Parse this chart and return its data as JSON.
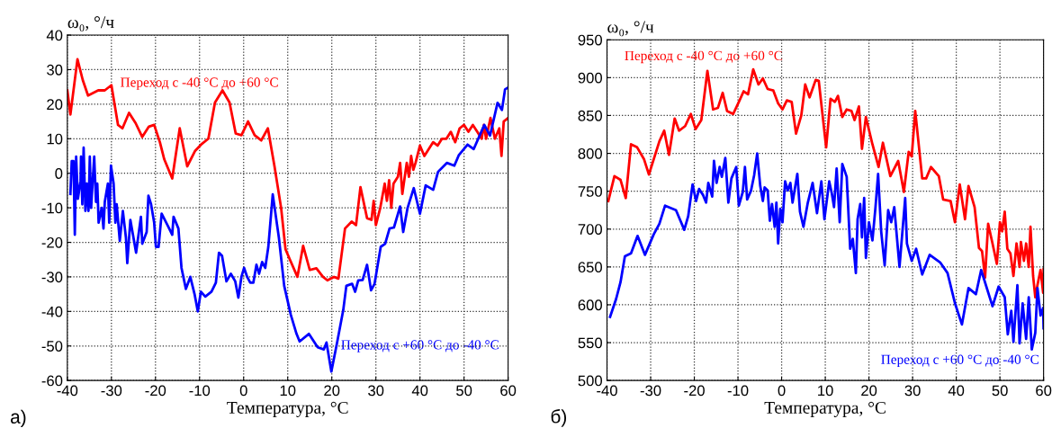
{
  "chart_data": [
    {
      "type": "line",
      "xlabel": "Температура, °C",
      "ylabel": "ω₀, °/ч",
      "annotations": [
        "а)"
      ],
      "xlim": [
        -40,
        60
      ],
      "ylim": [
        -60,
        40
      ],
      "xticks": [
        -40,
        -30,
        -20,
        -10,
        0,
        10,
        20,
        30,
        40,
        50,
        60
      ],
      "yticks": [
        -60,
        -50,
        -40,
        -30,
        -20,
        -10,
        0,
        10,
        20,
        30,
        40
      ],
      "grid": true,
      "line_style": "solid",
      "series": [
        {
          "name": "Переход с -40 °C до +60 °C",
          "color": "#ff0000",
          "x": [
            -40,
            -39.3,
            -37.7,
            -36.5,
            -35.3,
            -33,
            -31.5,
            -30,
            -28.5,
            -27.5,
            -26,
            -24.5,
            -23,
            -21.5,
            -20.3,
            -19,
            -18,
            -16.2,
            -14.5,
            -12.8,
            -11,
            -9.5,
            -8,
            -6.5,
            -4.8,
            -3.2,
            -1.8,
            -0.5,
            1,
            2.5,
            4,
            5.5,
            7,
            8.5,
            9.5,
            10.5,
            12.2,
            13.5,
            15,
            16.5,
            18,
            19,
            20.5,
            21.5,
            23,
            24.5,
            25.5,
            26.5,
            28,
            29,
            29.5,
            30,
            31,
            32,
            32.5,
            33,
            33.5,
            34,
            35,
            35.5,
            36,
            37,
            37.5,
            38,
            38.5,
            39,
            40,
            41,
            42,
            43,
            44,
            45,
            46,
            47,
            48,
            49,
            50,
            51,
            52,
            53,
            54,
            54.5,
            55,
            56,
            57,
            58,
            58.5,
            59,
            60
          ],
          "values": [
            24,
            17,
            33,
            27,
            22.5,
            24,
            24,
            25.5,
            14,
            13,
            17.5,
            14.5,
            10.5,
            13.5,
            14,
            9,
            4,
            -1.5,
            13,
            2,
            6.5,
            8.5,
            10,
            20.5,
            24,
            20.5,
            11.5,
            11,
            15,
            11,
            9.5,
            13,
            2,
            -10,
            -22,
            -25,
            -30,
            -21,
            -28,
            -27.5,
            -30,
            -31,
            -30,
            -30.5,
            -16,
            -14,
            -15,
            -4,
            -13,
            -13.5,
            -8,
            -15,
            -10,
            -3,
            -8,
            -2,
            -10,
            -3,
            -1,
            3,
            -6,
            3,
            -1,
            5,
            1,
            3,
            8,
            5,
            7,
            9,
            8,
            10,
            10,
            12,
            9,
            13,
            14,
            12,
            14,
            12,
            10,
            14,
            10,
            16,
            10,
            13,
            5,
            15,
            16
          ]
        },
        {
          "name": "Переход с +60 °C до -40 °C",
          "color": "#0000ff",
          "x": [
            -39.3,
            -39,
            -38.6,
            -38.3,
            -38,
            -37.6,
            -37,
            -36.9,
            -36.6,
            -36.3,
            -35.9,
            -35.6,
            -35.2,
            -34.9,
            -34.6,
            -34.2,
            -33.9,
            -33.5,
            -33.2,
            -32.9,
            -32.2,
            -31.8,
            -31.5,
            -30.8,
            -30.5,
            -30.1,
            -29.5,
            -29.1,
            -28.8,
            -28.1,
            -27.4,
            -26.7,
            -26.4,
            -25.7,
            -24.4,
            -23.3,
            -23,
            -22,
            -21.6,
            -21,
            -20.3,
            -19.9,
            -19.3,
            -18.6,
            -17.2,
            -16.2,
            -15.9,
            -14.8,
            -14.1,
            -13.1,
            -12.1,
            -11.1,
            -10.4,
            -9.7,
            -8.7,
            -7.3,
            -6.3,
            -5.6,
            -4.9,
            -3.9,
            -2.9,
            -1.9,
            -1.2,
            -0.5,
            0.1,
            0.8,
            1.5,
            2.2,
            2.9,
            3.5,
            4.2,
            4.9,
            5.6,
            6.6,
            8,
            9.2,
            10.7,
            12,
            12.7,
            14.8,
            16.8,
            18.2,
            18.8,
            19.9,
            21.2,
            22.6,
            23.3,
            24.6,
            25.3,
            26,
            27,
            28,
            28.9,
            29.7,
            31.1,
            32.1,
            33.1,
            34.1,
            35.5,
            36.2,
            37.2,
            38.6,
            40,
            41.3,
            43,
            44.1,
            46.1,
            47.8,
            48.8,
            50.8,
            52.2,
            54.6,
            55.9,
            57.6,
            58.6,
            59.3,
            60
          ],
          "values": [
            -6,
            3.5,
            3.5,
            -17.8,
            4.8,
            -7.4,
            -2.2,
            4.8,
            -9,
            7.4,
            -10.9,
            -3,
            -10.9,
            4.8,
            -10,
            -1.3,
            4.8,
            -8.3,
            -3,
            -14.3,
            -10,
            -16,
            -8.3,
            -3,
            -14.3,
            2.2,
            -3,
            -14.3,
            -9,
            -19.6,
            -10.9,
            -18.7,
            -26,
            -13.5,
            -23,
            -12.6,
            -20.4,
            -17,
            -6.5,
            -9,
            -14.3,
            -21.3,
            -21.3,
            -11.7,
            -15.2,
            -17.8,
            -12.6,
            -16,
            -27.4,
            -33.5,
            -30,
            -35.2,
            -40,
            -34.3,
            -35.7,
            -34.3,
            -31.7,
            -23,
            -23.9,
            -31.3,
            -29.1,
            -31.3,
            -36,
            -30,
            -27.4,
            -30,
            -31.7,
            -31.7,
            -26.5,
            -29.1,
            -25.7,
            -27.4,
            -21.3,
            -6.1,
            -18.7,
            -32.6,
            -41,
            -46.5,
            -48.7,
            -46.5,
            -50.4,
            -51,
            -49,
            -57.4,
            -49,
            -39.6,
            -32.6,
            -32,
            -34.3,
            -31,
            -30.9,
            -26.5,
            -33.9,
            -32,
            -21.3,
            -20.4,
            -16,
            -15.7,
            -9.6,
            -17,
            -10,
            -4.3,
            -11.7,
            -3.5,
            -4.8,
            0.4,
            3,
            2.2,
            5.2,
            8.3,
            7,
            14,
            10.9,
            20.4,
            18.3,
            24.3,
            24.8
          ]
        }
      ]
    },
    {
      "type": "line",
      "xlabel": "Температура, °C",
      "ylabel": "ω₀, °/ч",
      "annotations": [
        "б)"
      ],
      "xlim": [
        -40,
        60
      ],
      "ylim": [
        500,
        950
      ],
      "xticks": [
        -40,
        -30,
        -20,
        -10,
        0,
        10,
        20,
        30,
        40,
        50,
        60
      ],
      "yticks": [
        500,
        550,
        600,
        650,
        700,
        750,
        800,
        850,
        900,
        950
      ],
      "grid": true,
      "line_style": "solid",
      "series": [
        {
          "name": "Переход с -40 °C до +60 °C",
          "color": "#ff0000",
          "x": [
            -39.7,
            -38.3,
            -36.9,
            -35.7,
            -34.5,
            -33.1,
            -31.5,
            -30.4,
            -28,
            -26.9,
            -25.8,
            -24.5,
            -23.5,
            -22.1,
            -20.8,
            -19.7,
            -18.4,
            -17,
            -15.7,
            -14.6,
            -13.5,
            -12.5,
            -11.1,
            -9.8,
            -8.7,
            -7.7,
            -6.5,
            -5.3,
            -4.3,
            -3.2,
            -1.9,
            -0.8,
            0.2,
            1.2,
            2.3,
            3.3,
            4.5,
            5.4,
            6.4,
            7.8,
            8.5,
            10.2,
            11.2,
            12.2,
            12.9,
            13.9,
            14.9,
            16,
            16.7,
            17.7,
            18.4,
            19.3,
            20.8,
            22.2,
            23.2,
            24.9,
            26.7,
            28,
            29.1,
            29.8,
            30.6,
            32.2,
            33.1,
            34.2,
            36,
            37,
            38.7,
            39.7,
            40.8,
            42,
            42.8,
            44.2,
            45.2,
            45.9,
            46.6,
            47.3,
            48.3,
            49.3,
            50,
            50.5,
            51.1,
            51.7,
            52.4,
            53.1,
            53.8,
            54.5,
            54.8,
            55.5,
            56,
            56.6,
            57,
            57.6,
            58.1,
            58.6,
            59.3,
            59.9,
            60
          ],
          "values": [
            737,
            770,
            765,
            741,
            812,
            808,
            792,
            772,
            816,
            830,
            798,
            846,
            830,
            836,
            852,
            832,
            844,
            909,
            858,
            860,
            880,
            856,
            852,
            868,
            882,
            878,
            911,
            891,
            899,
            885,
            883,
            866,
            858,
            870,
            868,
            826,
            850,
            891,
            874,
            897,
            896,
            808,
            872,
            868,
            876,
            848,
            858,
            856,
            844,
            862,
            806,
            848,
            812,
            782,
            814,
            770,
            790,
            749,
            802,
            796,
            856,
            767,
            767,
            782,
            770,
            739,
            737,
            709,
            759,
            713,
            757,
            729,
            675,
            671,
            636,
            707,
            681,
            654,
            709,
            697,
            723,
            674,
            668,
            638,
            681,
            650,
            683,
            658,
            681,
            650,
            703,
            638,
            610,
            626,
            646,
            616,
            647
          ]
        },
        {
          "name": "Переход с +60 °C до -40 °C",
          "color": "#0000ff",
          "x": [
            -39.3,
            -37.9,
            -36.9,
            -35.9,
            -34.5,
            -33,
            -31.3,
            -29.3,
            -28,
            -26.7,
            -24.2,
            -22.3,
            -21.4,
            -20.4,
            -19.6,
            -18.9,
            -18,
            -17.3,
            -16.8,
            -15.9,
            -15.5,
            -14.9,
            -14.2,
            -13.7,
            -12.9,
            -12.2,
            -11.5,
            -10.4,
            -9.8,
            -8.9,
            -8.4,
            -7.9,
            -7,
            -6.3,
            -5.6,
            -4.9,
            -4.3,
            -3.9,
            -3.2,
            -2.7,
            -2.2,
            -1.6,
            -1.2,
            -0.8,
            -0.3,
            0.2,
            0.8,
            1.4,
            2,
            2.5,
            3.6,
            4.2,
            5,
            6,
            7.1,
            8.1,
            9.1,
            9.8,
            10.9,
            11.5,
            12,
            12.6,
            13.3,
            13.9,
            14.9,
            15.7,
            16.3,
            17,
            17.4,
            18,
            18.4,
            18.9,
            19.3,
            20,
            20.8,
            21.5,
            22.1,
            22.8,
            23.6,
            24.4,
            25.1,
            25.8,
            27,
            28.3,
            28.7,
            29.8,
            30.8,
            32.2,
            33.9,
            36.3,
            38,
            39.7,
            41.3,
            42.8,
            44.5,
            45.7,
            48.3,
            49.7,
            51.1,
            51.8,
            52.6,
            53.1,
            54,
            54.5,
            55.2,
            56,
            56.6,
            57.3,
            58.1,
            58.6,
            59.3,
            59.9,
            60
          ],
          "values": [
            584,
            608,
            630,
            664,
            668,
            691,
            666,
            693,
            707,
            731,
            725,
            699,
            717,
            759,
            737,
            753,
            745,
            735,
            761,
            743,
            790,
            761,
            782,
            769,
            794,
            735,
            767,
            782,
            731,
            749,
            782,
            739,
            751,
            771,
            800,
            757,
            737,
            755,
            751,
            711,
            733,
            703,
            735,
            681,
            727,
            709,
            763,
            751,
            761,
            735,
            773,
            723,
            703,
            735,
            761,
            721,
            763,
            713,
            763,
            747,
            729,
            780,
            709,
            786,
            769,
            674,
            687,
            642,
            713,
            733,
            689,
            741,
            662,
            709,
            685,
            729,
            773,
            697,
            652,
            725,
            709,
            729,
            650,
            741,
            681,
            658,
            674,
            640,
            666,
            656,
            642,
            602,
            574,
            622,
            614,
            646,
            598,
            624,
            610,
            561,
            592,
            551,
            626,
            549,
            602,
            555,
            610,
            541,
            563,
            622,
            586,
            596,
            569
          ]
        }
      ]
    }
  ]
}
